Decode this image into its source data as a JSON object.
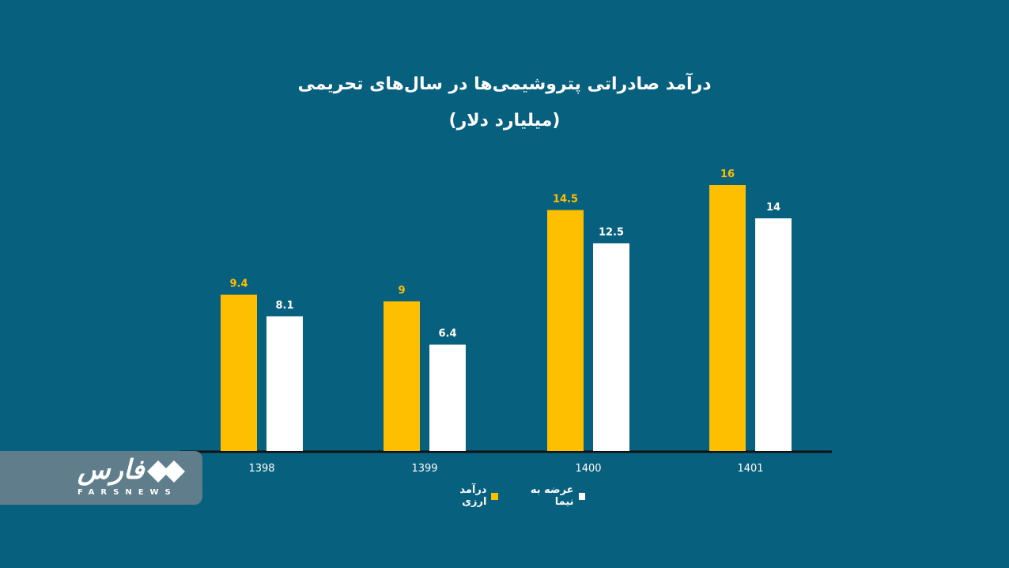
{
  "chart_data": {
    "type": "bar",
    "title": "درآمد صادراتی پتروشیمی‌ها در سال‌های تحریمی",
    "subtitle": "(میلیارد دلار)",
    "categories": [
      "1398",
      "1399",
      "1400",
      "1401"
    ],
    "series": [
      {
        "name": "درآمد ارزی",
        "values": [
          9.4,
          9,
          14.5,
          16
        ],
        "color": "#fdbf00"
      },
      {
        "name": "عرضه به نیما",
        "values": [
          8.1,
          6.4,
          12.5,
          14
        ],
        "color": "#ffffff"
      }
    ],
    "ylim": [
      0,
      16
    ],
    "grid": false,
    "legend_position": "bottom"
  },
  "logo": {
    "name": "فارس",
    "subtitle": "FARSNEWS"
  }
}
